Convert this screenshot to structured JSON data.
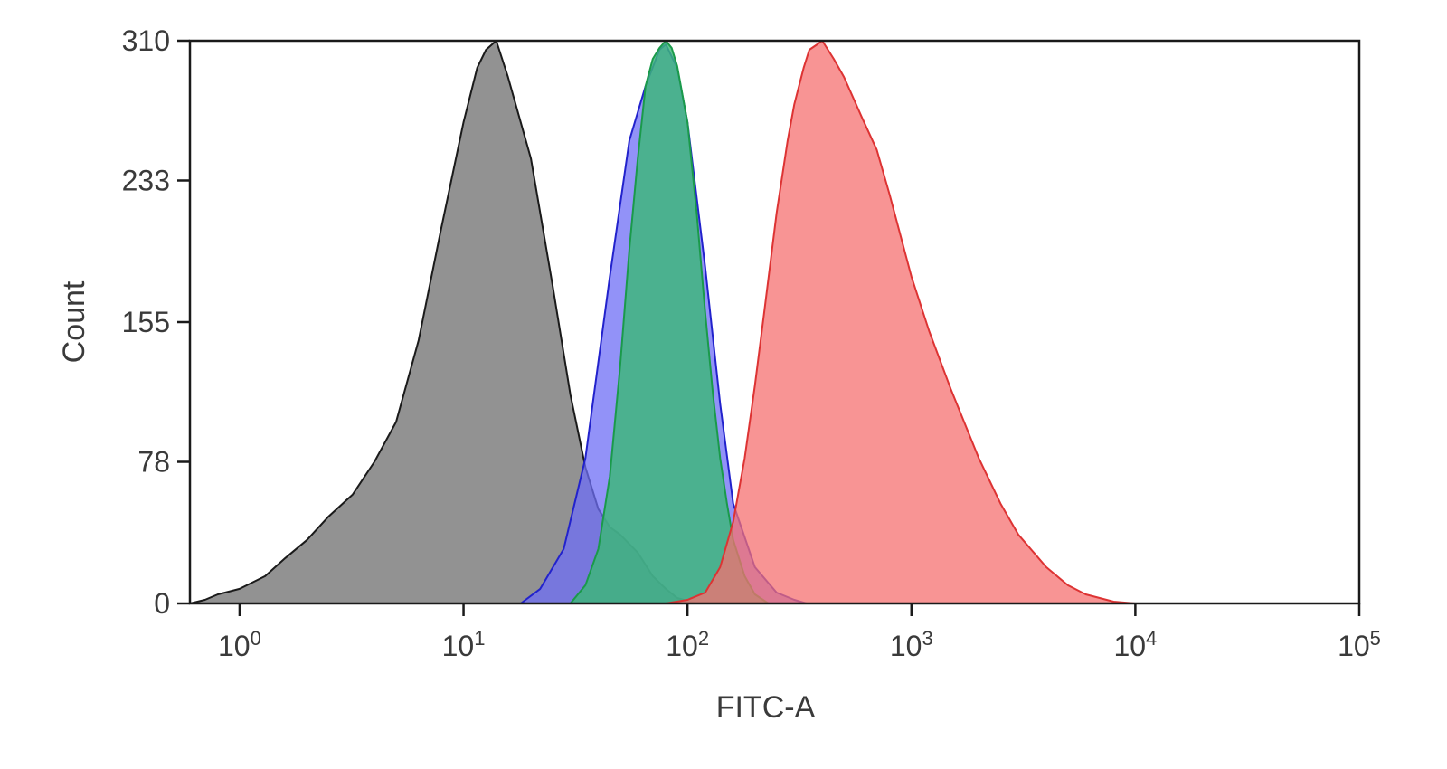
{
  "chart_data": {
    "type": "area",
    "title": "",
    "xlabel": "FITC-A",
    "ylabel": "Count",
    "x_scale": "log",
    "xlim": [
      0.6,
      100000
    ],
    "ylim": [
      0,
      310
    ],
    "grid": false,
    "legend": "none",
    "yticks": [
      {
        "value": 0,
        "label": "0"
      },
      {
        "value": 78,
        "label": "78"
      },
      {
        "value": 155,
        "label": "155"
      },
      {
        "value": 233,
        "label": "233"
      },
      {
        "value": 310,
        "label": "310"
      }
    ],
    "xticks": [
      {
        "value": 1,
        "base": "10",
        "exp": "0"
      },
      {
        "value": 10,
        "base": "10",
        "exp": "1"
      },
      {
        "value": 100,
        "base": "10",
        "exp": "2"
      },
      {
        "value": 1000,
        "base": "10",
        "exp": "3"
      },
      {
        "value": 10000,
        "base": "10",
        "exp": "4"
      },
      {
        "value": 100000,
        "base": "10",
        "exp": "5"
      }
    ],
    "series": [
      {
        "color": "#8c8c8c",
        "fill_opacity": 0.95,
        "stroke": "#1a1a1a",
        "x": [
          0.6,
          0.7,
          0.8,
          1.0,
          1.3,
          1.6,
          2.0,
          2.5,
          3.2,
          4.0,
          5.0,
          6.3,
          7.9,
          10,
          11.5,
          12.6,
          14,
          15.8,
          20,
          25,
          30,
          35,
          40,
          45,
          50,
          60,
          70,
          80,
          90,
          110
        ],
        "y": [
          0,
          2,
          5,
          8,
          15,
          25,
          35,
          48,
          60,
          78,
          100,
          145,
          205,
          265,
          295,
          305,
          310,
          290,
          245,
          175,
          115,
          75,
          52,
          42,
          38,
          28,
          15,
          8,
          3,
          0
        ]
      },
      {
        "color": "#6e6ef5",
        "fill_opacity": 0.75,
        "stroke": "#2222cc",
        "x": [
          18,
          22,
          28,
          35,
          45,
          55,
          65,
          75,
          80,
          90,
          100,
          120,
          140,
          160,
          200,
          250,
          300,
          340
        ],
        "y": [
          0,
          8,
          30,
          80,
          180,
          255,
          285,
          305,
          308,
          295,
          265,
          185,
          110,
          55,
          20,
          6,
          2,
          0
        ]
      },
      {
        "color": "#3cb878",
        "fill_opacity": 0.82,
        "stroke": "#1a9a4a",
        "x": [
          30,
          35,
          40,
          45,
          50,
          55,
          60,
          65,
          70,
          75,
          80,
          85,
          90,
          100,
          110,
          120,
          130,
          140,
          150,
          160,
          180,
          200,
          230
        ],
        "y": [
          0,
          10,
          30,
          70,
          130,
          195,
          245,
          285,
          300,
          306,
          310,
          306,
          296,
          265,
          215,
          160,
          115,
          80,
          55,
          35,
          15,
          5,
          0
        ]
      },
      {
        "color": "#f57070",
        "fill_opacity": 0.75,
        "stroke": "#dd3333",
        "x": [
          80,
          100,
          120,
          140,
          160,
          180,
          200,
          220,
          250,
          280,
          300,
          330,
          350,
          380,
          400,
          450,
          500,
          600,
          700,
          800,
          1000,
          1200,
          1500,
          2000,
          2500,
          3000,
          4000,
          5000,
          6000,
          8000,
          10000
        ],
        "y": [
          0,
          2,
          6,
          20,
          45,
          80,
          120,
          160,
          215,
          255,
          275,
          295,
          305,
          308,
          310,
          300,
          290,
          268,
          250,
          225,
          180,
          150,
          118,
          80,
          55,
          38,
          20,
          10,
          5,
          1,
          0
        ]
      }
    ]
  }
}
